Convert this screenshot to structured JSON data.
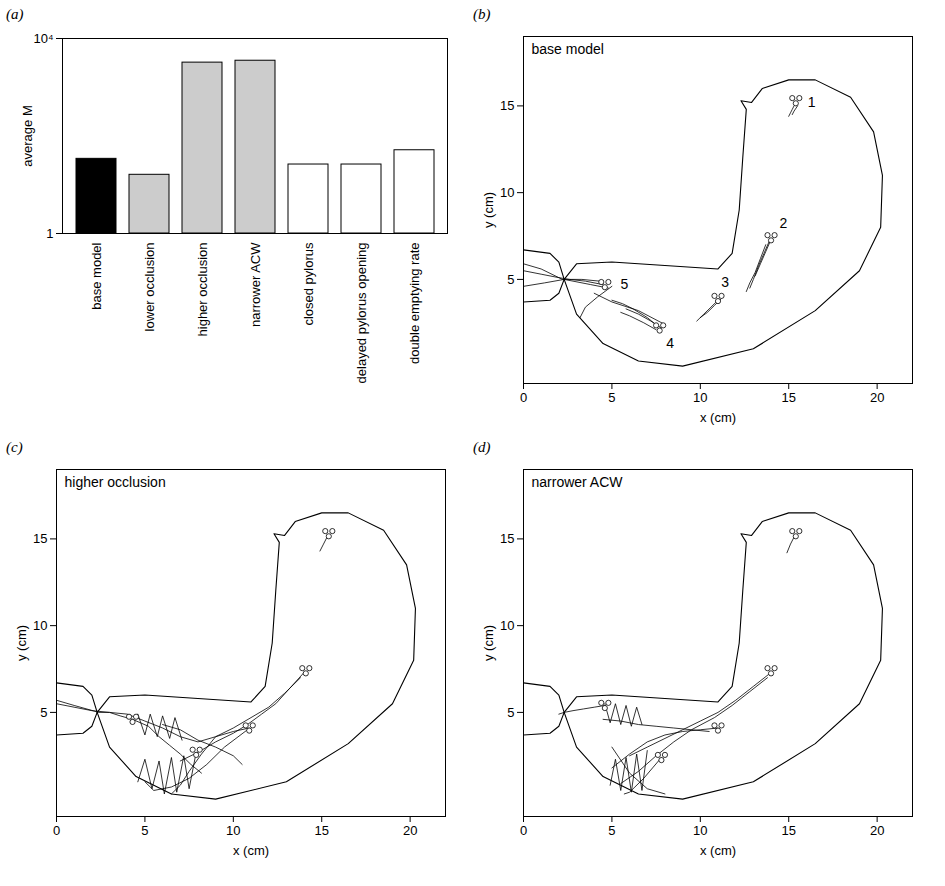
{
  "chart_data": [
    {
      "type": "bar",
      "panel_label": "(a)",
      "ylabel": "average M",
      "categories": [
        "base model",
        "lower occlusion",
        "higher occlusion",
        "narrower ACW",
        "closed pylorus",
        "delayed pylorus opening",
        "double emptying rate"
      ],
      "values": [
        34,
        16,
        3200,
        3500,
        26,
        26,
        51
      ],
      "colors": [
        "#000000",
        "#cccccc",
        "#cccccc",
        "#cccccc",
        "#ffffff",
        "#ffffff",
        "#ffffff"
      ],
      "log": "y",
      "ylim": [
        1,
        10000
      ],
      "yticks": [
        1,
        {
          "value": 10000,
          "label": "10⁴"
        }
      ]
    },
    {
      "type": "line",
      "panel_label": "(b)",
      "title": "base model",
      "xlabel": "x (cm)",
      "ylabel": "y (cm)",
      "color": "#000000",
      "marker": "circle",
      "xlim": [
        0,
        22
      ],
      "ylim": [
        -1,
        19
      ],
      "xticks": [
        0,
        5,
        10,
        15,
        20
      ],
      "yticks": [
        5,
        10,
        15
      ],
      "outline": [
        {
          "x": [
            2.3,
            3.0,
            5,
            8,
            11,
            11.8,
            12.2,
            12.4,
            12.6,
            12.3,
            12.9,
            13.5,
            15,
            16.5,
            18.5,
            19.8,
            20.3,
            20.2,
            19,
            16.5,
            13,
            9,
            6.5,
            4.5,
            3,
            2.3
          ],
          "y": [
            5,
            5.9,
            6,
            5.8,
            5.6,
            6.5,
            9,
            12,
            14.8,
            15.3,
            15.2,
            16,
            16.5,
            16.5,
            15.5,
            13.5,
            11,
            8,
            5.5,
            3.2,
            1,
            0,
            0.3,
            1.3,
            3,
            5
          ]
        },
        {
          "x": [
            0,
            1.5,
            2.0,
            2.3
          ],
          "y": [
            6.7,
            6.5,
            6.0,
            5
          ]
        },
        {
          "x": [
            0,
            1.5,
            2.0,
            2.3
          ],
          "y": [
            3.7,
            3.8,
            4.2,
            5
          ]
        }
      ],
      "paths": [
        {
          "x": [
            15.3,
            15.2,
            15.1,
            15.0
          ],
          "y": [
            15.0,
            14.8,
            14.6,
            14.4
          ]
        },
        {
          "x": [
            15.5,
            15.3,
            15.2
          ],
          "y": [
            15.0,
            14.7,
            14.5
          ]
        },
        {
          "x": [
            13.9,
            13.6,
            13.3,
            13.0,
            12.8
          ],
          "y": [
            7.2,
            6.5,
            5.8,
            5.0,
            4.5
          ]
        },
        {
          "x": [
            13.7,
            13.4,
            13.1,
            12.8,
            12.6
          ],
          "y": [
            7.0,
            6.2,
            5.4,
            4.8,
            4.3
          ]
        },
        {
          "x": [
            14.0,
            13.7,
            13.4,
            13.1
          ],
          "y": [
            7.3,
            6.6,
            5.9,
            5.2
          ]
        },
        {
          "x": [
            11.0,
            10.6,
            10.2,
            9.8
          ],
          "y": [
            3.8,
            3.4,
            3.0,
            2.6
          ]
        },
        {
          "x": [
            11.2,
            10.8,
            10.4,
            10.0
          ],
          "y": [
            3.9,
            3.5,
            3.1,
            2.8
          ]
        },
        {
          "x": [
            7.8,
            7.2,
            6.5,
            5.8
          ],
          "y": [
            2.2,
            2.6,
            3.0,
            3.3
          ]
        },
        {
          "x": [
            7.5,
            6.8,
            6.0,
            5.5
          ],
          "y": [
            2.1,
            2.5,
            2.9,
            3.1
          ]
        },
        {
          "x": [
            7.6,
            7.0,
            6.2,
            5.6,
            5.0
          ],
          "y": [
            2.3,
            2.8,
            3.3,
            3.6,
            3.8
          ]
        },
        {
          "x": [
            4.5,
            3.5,
            2.6,
            2.0,
            1.0,
            0
          ],
          "y": [
            4.7,
            4.9,
            5.0,
            5.1,
            5.3,
            5.5
          ]
        },
        {
          "x": [
            4.8,
            3.8,
            2.8,
            2.3,
            1.2,
            0
          ],
          "y": [
            4.5,
            4.7,
            4.9,
            5.0,
            4.8,
            4.6
          ]
        },
        {
          "x": [
            4.3,
            3.3,
            2.7,
            2.2,
            1.0,
            0
          ],
          "y": [
            4.9,
            5.0,
            5.0,
            5.0,
            5.6,
            5.9
          ]
        },
        {
          "x": [
            5.0,
            4.2,
            3.5,
            3.2
          ],
          "y": [
            4.6,
            4.0,
            3.4,
            2.8
          ]
        },
        {
          "x": [
            8.0,
            6.5,
            5.0,
            4.0
          ],
          "y": [
            2.4,
            3.2,
            3.7,
            4.2
          ]
        }
      ],
      "markers": {
        "x": [
          15.2,
          15.6,
          15.4,
          13.8,
          14.2,
          14.0,
          10.8,
          11.2,
          11.0,
          7.5,
          7.9,
          7.7,
          4.4,
          4.8,
          4.6
        ],
        "y": [
          15.45,
          15.45,
          15.15,
          7.55,
          7.55,
          7.25,
          4.05,
          4.05,
          3.75,
          2.35,
          2.35,
          2.05,
          4.85,
          4.85,
          4.55
        ]
      },
      "annotations": [
        {
          "text": "1",
          "x": 16.3,
          "y": 15.2
        },
        {
          "text": "2",
          "x": 14.7,
          "y": 8.2
        },
        {
          "text": "3",
          "x": 11.4,
          "y": 4.8
        },
        {
          "text": "4",
          "x": 8.3,
          "y": 1.3
        },
        {
          "text": "5",
          "x": 5.7,
          "y": 4.7
        }
      ]
    },
    {
      "type": "line",
      "panel_label": "(c)",
      "title": "higher occlusion",
      "xlabel": "x (cm)",
      "ylabel": "y (cm)",
      "color": "#000000",
      "marker": "circle",
      "xlim": [
        0,
        22
      ],
      "ylim": [
        -1,
        19
      ],
      "xticks": [
        0,
        5,
        10,
        15,
        20
      ],
      "yticks": [
        5,
        10,
        15
      ],
      "outline": [
        {
          "x": [
            2.3,
            3.0,
            5,
            8,
            11,
            11.8,
            12.2,
            12.4,
            12.6,
            12.3,
            12.9,
            13.5,
            15,
            16.5,
            18.5,
            19.8,
            20.3,
            20.2,
            19,
            16.5,
            13,
            9,
            6.5,
            4.5,
            3,
            2.3
          ],
          "y": [
            5,
            5.9,
            6,
            5.8,
            5.6,
            6.5,
            9,
            12,
            14.8,
            15.3,
            15.2,
            16,
            16.5,
            16.5,
            15.5,
            13.5,
            11,
            8,
            5.5,
            3.2,
            1,
            0,
            0.3,
            1.3,
            3,
            5
          ]
        },
        {
          "x": [
            0,
            1.5,
            2.0,
            2.3
          ],
          "y": [
            6.7,
            6.5,
            6.0,
            5
          ]
        },
        {
          "x": [
            0,
            1.5,
            2.0,
            2.3
          ],
          "y": [
            3.7,
            3.8,
            4.2,
            5
          ]
        }
      ],
      "paths": [
        {
          "x": [
            15.3,
            15.1,
            14.9
          ],
          "y": [
            15.1,
            14.7,
            14.3
          ]
        },
        {
          "x": [
            14.0,
            13.2,
            12.4,
            11.6,
            10.8,
            10.0,
            9.0,
            8.0,
            7.0
          ],
          "y": [
            7.3,
            6.4,
            5.5,
            4.9,
            4.3,
            3.8,
            3.3,
            2.7,
            2.2
          ]
        },
        {
          "x": [
            13.8,
            12.9,
            12.0,
            11.0,
            10.0,
            9.0,
            8.2,
            7.5,
            7.0,
            6.5
          ],
          "y": [
            7.0,
            6.1,
            5.3,
            4.7,
            4.1,
            3.6,
            2.6,
            1.6,
            0.8,
            0.3
          ]
        },
        {
          "x": [
            10.9,
            10.0,
            9.0,
            8.0,
            7.0,
            6.0,
            5.0,
            4.0,
            3.0,
            2.0,
            0
          ],
          "y": [
            4.1,
            3.9,
            3.6,
            3.3,
            3.6,
            4.1,
            4.5,
            4.9,
            5.0,
            5.1,
            5.5
          ]
        },
        {
          "x": [
            10.8,
            9.5,
            8.5,
            7.5,
            6.5,
            5.5,
            5.0
          ],
          "y": [
            4.0,
            3.0,
            2.0,
            1.2,
            0.7,
            0.5,
            1.0
          ]
        },
        {
          "x": [
            7.9,
            7.5,
            7.2,
            6.8,
            6.5,
            6.1,
            5.8,
            5.4,
            5.0,
            4.6
          ],
          "y": [
            2.7,
            0.6,
            2.5,
            0.4,
            2.4,
            0.3,
            2.2,
            0.6,
            2.3,
            1.0
          ]
        },
        {
          "x": [
            4.3,
            3.6,
            3.0,
            2.4,
            1.0,
            0
          ],
          "y": [
            4.6,
            4.8,
            5.0,
            5.0,
            5.4,
            5.7
          ]
        },
        {
          "x": [
            4.3,
            5.2,
            5.8,
            6.4,
            7.0,
            7.6,
            8.2
          ],
          "y": [
            4.6,
            4.2,
            3.6,
            3.1,
            2.6,
            2.0,
            1.5
          ]
        },
        {
          "x": [
            4.6,
            5.0,
            5.3,
            5.7,
            6.0,
            6.4,
            6.7,
            7.1
          ],
          "y": [
            4.9,
            3.7,
            4.9,
            3.6,
            4.8,
            3.5,
            4.7,
            3.4
          ]
        },
        {
          "x": [
            6.0,
            7.0,
            8.0,
            9.0,
            10.0,
            10.5
          ],
          "y": [
            4.3,
            4.0,
            3.4,
            3.0,
            2.5,
            2.0
          ]
        }
      ],
      "markers": {
        "x": [
          15.2,
          15.6,
          15.4,
          13.9,
          14.3,
          14.1,
          10.7,
          11.1,
          10.9,
          7.7,
          8.1,
          7.9,
          4.1,
          4.5,
          4.3
        ],
        "y": [
          15.45,
          15.45,
          15.15,
          7.55,
          7.55,
          7.25,
          4.25,
          4.25,
          3.95,
          2.85,
          2.85,
          2.55,
          4.75,
          4.75,
          4.45
        ]
      }
    },
    {
      "type": "line",
      "panel_label": "(d)",
      "title": "narrower ACW",
      "xlabel": "x (cm)",
      "ylabel": "y (cm)",
      "color": "#000000",
      "marker": "circle",
      "xlim": [
        0,
        22
      ],
      "ylim": [
        -1,
        19
      ],
      "xticks": [
        0,
        5,
        10,
        15,
        20
      ],
      "yticks": [
        5,
        10,
        15
      ],
      "outline": [
        {
          "x": [
            2.3,
            3.0,
            5,
            8,
            11,
            11.8,
            12.2,
            12.4,
            12.6,
            12.3,
            12.9,
            13.5,
            15,
            16.5,
            18.5,
            19.8,
            20.3,
            20.2,
            19,
            16.5,
            13,
            9,
            6.5,
            4.5,
            3,
            2.3
          ],
          "y": [
            5,
            5.9,
            6,
            5.8,
            5.6,
            6.5,
            9,
            12,
            14.8,
            15.3,
            15.2,
            16,
            16.5,
            16.5,
            15.5,
            13.5,
            11,
            8,
            5.5,
            3.2,
            1,
            0,
            0.3,
            1.3,
            3,
            5
          ]
        },
        {
          "x": [
            0,
            1.5,
            2.0,
            2.3
          ],
          "y": [
            6.7,
            6.5,
            6.0,
            5
          ]
        },
        {
          "x": [
            0,
            1.5,
            2.0,
            2.3
          ],
          "y": [
            3.7,
            3.8,
            4.2,
            5
          ]
        }
      ],
      "paths": [
        {
          "x": [
            15.3,
            15.1,
            14.9
          ],
          "y": [
            15.1,
            14.7,
            14.2
          ]
        },
        {
          "x": [
            14.0,
            13.0,
            12.0,
            11.0,
            10.0,
            9.0,
            8.0,
            7.0,
            6.0
          ],
          "y": [
            7.3,
            6.5,
            5.7,
            5.0,
            4.5,
            4.0,
            3.5,
            3.0,
            2.5
          ]
        },
        {
          "x": [
            13.8,
            12.8,
            11.8,
            10.8,
            9.5,
            8.5,
            7.5,
            6.5,
            5.5
          ],
          "y": [
            7.0,
            6.2,
            5.4,
            4.7,
            4.0,
            3.3,
            2.5,
            1.6,
            0.9
          ]
        },
        {
          "x": [
            11.0,
            10.0,
            9.0,
            8.0,
            7.0,
            6.0,
            5.0
          ],
          "y": [
            4.1,
            4.0,
            3.9,
            3.7,
            3.3,
            2.6,
            1.8
          ]
        },
        {
          "x": [
            7.8,
            7.3,
            6.8,
            6.3,
            6.0,
            5.7
          ],
          "y": [
            2.4,
            1.8,
            1.2,
            0.7,
            0.4,
            0.3
          ]
        },
        {
          "x": [
            7.0,
            6.7,
            6.4,
            6.1,
            5.8,
            5.5,
            5.2,
            4.9
          ],
          "y": [
            2.8,
            0.5,
            2.6,
            0.4,
            2.4,
            0.5,
            2.3,
            0.8
          ]
        },
        {
          "x": [
            4.6,
            4.0,
            3.4,
            2.8,
            2.3,
            2.0
          ],
          "y": [
            5.4,
            5.3,
            5.2,
            5.1,
            5.0,
            4.9
          ]
        },
        {
          "x": [
            4.6,
            4.9,
            5.2,
            5.5,
            5.8,
            6.1,
            6.4,
            6.7
          ],
          "y": [
            5.5,
            4.4,
            5.5,
            4.3,
            5.4,
            4.2,
            5.3,
            4.3
          ]
        },
        {
          "x": [
            4.5,
            5.5,
            6.5,
            7.5,
            8.5,
            9.5,
            10.5
          ],
          "y": [
            4.6,
            4.5,
            4.3,
            4.2,
            4.1,
            4.0,
            3.9
          ]
        },
        {
          "x": [
            5.0,
            6.0,
            7.0,
            8.0
          ],
          "y": [
            3.0,
            1.5,
            0.6,
            0.3
          ]
        }
      ],
      "markers": {
        "x": [
          15.2,
          15.6,
          15.4,
          13.8,
          14.2,
          14.0,
          10.8,
          11.2,
          11.0,
          7.6,
          8.0,
          7.8,
          4.4,
          4.8,
          4.6
        ],
        "y": [
          15.45,
          15.45,
          15.15,
          7.55,
          7.55,
          7.25,
          4.25,
          4.25,
          3.95,
          2.55,
          2.55,
          2.25,
          5.55,
          5.55,
          5.25
        ]
      }
    }
  ]
}
